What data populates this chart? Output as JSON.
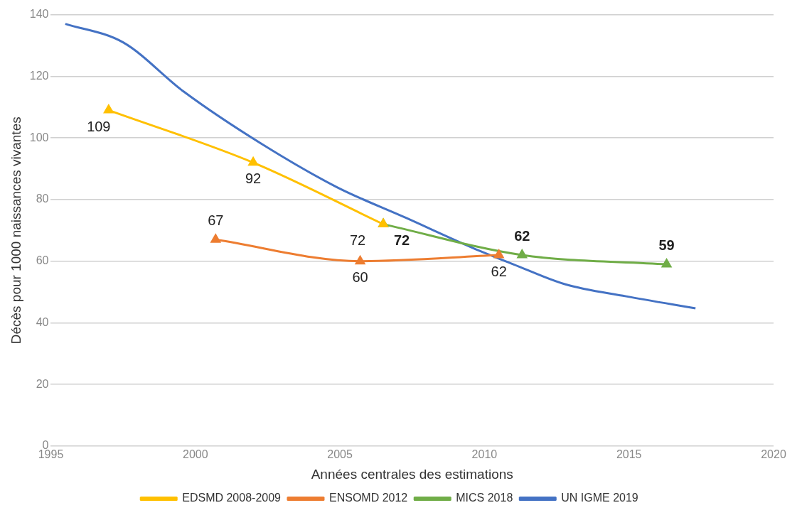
{
  "chart_data": {
    "type": "line",
    "xlabel": "Années centrales des estimations",
    "ylabel": "Décès pour 1000 naissances vivantes",
    "xlim": [
      1995,
      2020
    ],
    "xticks": [
      1995,
      2000,
      2005,
      2010,
      2015,
      2020
    ],
    "ylim": [
      0,
      140
    ],
    "yticks": [
      0,
      20,
      40,
      60,
      80,
      100,
      120,
      140
    ],
    "grid": "y",
    "legend": "bottom",
    "marker": "triangle",
    "series": [
      {
        "name": "EDSMD 2008-2009",
        "color": "#ffc000",
        "x": [
          1997,
          2002,
          2006.5
        ],
        "values": [
          109,
          92,
          72
        ],
        "value_labels": [
          "109",
          "92",
          "72"
        ]
      },
      {
        "name": "ENSOMD 2012",
        "color": "#ed7d31",
        "x": [
          2000.7,
          2005.7,
          2010.5
        ],
        "values": [
          67,
          60,
          62
        ],
        "value_labels": [
          "67",
          "60",
          "62"
        ]
      },
      {
        "name": "MICS 2018",
        "color": "#70ad47",
        "x": [
          2006.5,
          2011.3,
          2016.3
        ],
        "values": [
          72,
          62,
          59
        ],
        "value_labels": [
          "72",
          "62",
          "59"
        ]
      },
      {
        "name": "UN IGME 2019",
        "color": "#4472c4",
        "marker": "none",
        "x": [
          1995.5,
          1997.5,
          1999.6,
          2002.3,
          2004.9,
          2007.3,
          2009.6,
          2011,
          2012.8,
          2014.9,
          2017.3
        ],
        "values": [
          137,
          131,
          115,
          98,
          84,
          74,
          64.3,
          59,
          52.5,
          48.6,
          44.7
        ]
      }
    ]
  }
}
